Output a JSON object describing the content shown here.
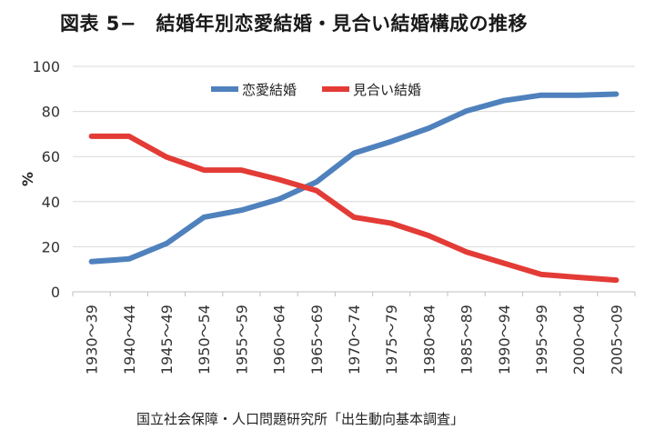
{
  "title": "図表 5−　結婚年別恋愛結婚・見合い結婚構成の推移",
  "source": "国立社会保障・人口問題研究所「出生動向基本調査」",
  "chart_data": {
    "type": "line",
    "title": "図表 5−　結婚年別恋愛結婚・見合い結婚構成の推移",
    "xlabel": "",
    "ylabel": "%",
    "ylim": [
      0,
      100
    ],
    "yticks": [
      0,
      20,
      40,
      60,
      80,
      100
    ],
    "grid": true,
    "legend_position": "top-center",
    "categories": [
      "1930～39",
      "1940～44",
      "1945～49",
      "1950～54",
      "1955～59",
      "1960～64",
      "1965～69",
      "1970～74",
      "1975～79",
      "1980～84",
      "1985～89",
      "1990～94",
      "1995～99",
      "2000～04",
      "2005～09"
    ],
    "series": [
      {
        "name": "恋愛結婚",
        "color": "#4f81bd",
        "values": [
          13.4,
          14.6,
          21.4,
          33.1,
          36.2,
          41.1,
          48.7,
          61.5,
          66.7,
          72.6,
          80.2,
          84.8,
          87.2,
          87.2,
          87.7
        ]
      },
      {
        "name": "見合い結婚",
        "color": "#e33b36",
        "values": [
          69.0,
          69.0,
          59.8,
          54.0,
          54.0,
          49.8,
          44.9,
          33.1,
          30.4,
          24.9,
          17.7,
          12.7,
          7.7,
          6.4,
          5.2
        ]
      }
    ]
  }
}
